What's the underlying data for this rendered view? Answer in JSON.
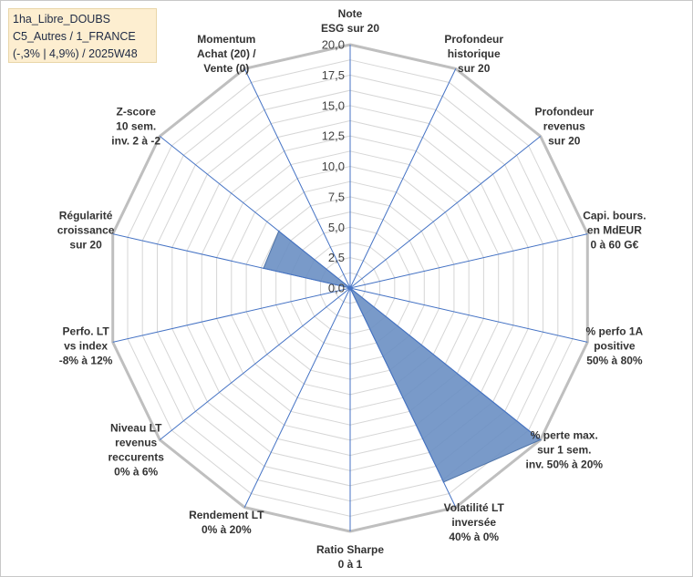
{
  "info_box": {
    "line1": "1ha_Libre_DOUBS",
    "line2": "C5_Autres / 1_FRANCE",
    "line3": "(-,3% | 4,9%) / 2025W48"
  },
  "chart_data": {
    "type": "radar",
    "title": "",
    "rmax": 20,
    "ticks": [
      "0,0",
      "2,5",
      "5,0",
      "7,5",
      "10,0",
      "12,5",
      "15,0",
      "17,5",
      "20,0"
    ],
    "tick_values": [
      0,
      2.5,
      5,
      7.5,
      10,
      12.5,
      15,
      17.5,
      20
    ],
    "grid_rings": 16,
    "axes": [
      {
        "label": [
          "Note",
          "ESG sur 20"
        ],
        "value": 0
      },
      {
        "label": [
          "Profondeur",
          "historique",
          "sur 20"
        ],
        "value": 0
      },
      {
        "label": [
          "Profondeur",
          "revenus",
          "sur 20"
        ],
        "value": 0
      },
      {
        "label": [
          "Capi. bours.",
          "en MdEUR",
          "0 à 60 G€"
        ],
        "value": 0
      },
      {
        "label": [
          "% perfo 1A",
          "positive",
          "50% à 80%"
        ],
        "value": 0
      },
      {
        "label": [
          "% perte max.",
          "sur 1 sem.",
          "inv. 50% à 20%"
        ],
        "value": 20
      },
      {
        "label": [
          "Volatilité LT",
          "inversée",
          "40% à 0%"
        ],
        "value": 17.7
      },
      {
        "label": [
          "Ratio Sharpe",
          "0 à 1"
        ],
        "value": 0
      },
      {
        "label": [
          "Rendement LT",
          "0% à 20%"
        ],
        "value": 0
      },
      {
        "label": [
          "Niveau LT",
          "revenus",
          "reccurents",
          "0% à 6%"
        ],
        "value": 0
      },
      {
        "label": [
          "Perfo. LT",
          "vs index",
          "-8% à 12%"
        ],
        "value": 0
      },
      {
        "label": [
          "Régularité",
          "croissance",
          "sur 20"
        ],
        "value": 7.3
      },
      {
        "label": [
          "Z-score",
          "10 sem.",
          "inv. 2 à -2"
        ],
        "value": 7.5
      },
      {
        "label": [
          "Momentum",
          "Achat (20) /",
          "Vente (0)"
        ],
        "value": 0
      }
    ],
    "series_color": "#6a8fc3",
    "series_stroke": "#4f74a8"
  }
}
